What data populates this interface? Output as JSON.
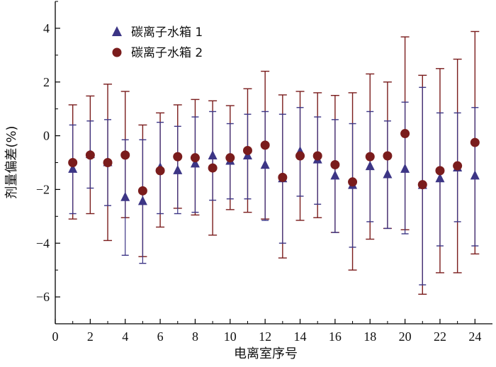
{
  "chart_data": {
    "type": "scatter",
    "xlabel": "电离室序号",
    "ylabel": "剂量偏差(%)",
    "xlim": [
      0,
      25
    ],
    "ylim": [
      -7,
      5
    ],
    "xticks": [
      0,
      2,
      4,
      6,
      8,
      10,
      12,
      14,
      16,
      18,
      20,
      22,
      24
    ],
    "yticks": [
      -6,
      -4,
      -2,
      0,
      2,
      4
    ],
    "ytick_labels": [
      "−6",
      "−4",
      "−2",
      "0",
      "2",
      "4"
    ],
    "legend_position": "top-left",
    "colors": {
      "series1": "#3c3585",
      "series2": "#7a1c1c"
    },
    "series": [
      {
        "name": "碳离子水箱 1",
        "marker": "triangle",
        "x": [
          1,
          2,
          3,
          4,
          5,
          6,
          7,
          8,
          9,
          10,
          11,
          12,
          13,
          14,
          15,
          16,
          17,
          18,
          19,
          20,
          21,
          22,
          23,
          24
        ],
        "y": [
          -1.25,
          -0.7,
          -1.0,
          -2.3,
          -2.45,
          -1.2,
          -1.3,
          -1.05,
          -0.75,
          -0.95,
          -0.75,
          -1.1,
          -1.6,
          -0.6,
          -0.9,
          -1.5,
          -1.85,
          -1.15,
          -1.45,
          -1.25,
          -1.85,
          -1.6,
          -1.2,
          -1.5
        ],
        "err_low": [
          -2.9,
          -1.95,
          -2.6,
          -4.45,
          -4.75,
          -2.9,
          -2.9,
          -2.85,
          -2.4,
          -2.35,
          -2.35,
          -3.15,
          -4.0,
          -2.25,
          -2.55,
          -3.6,
          -4.15,
          -3.2,
          -3.45,
          -3.65,
          -5.55,
          -4.1,
          -3.2,
          -4.1
        ],
        "err_high": [
          0.4,
          0.55,
          0.6,
          -0.15,
          -0.15,
          0.5,
          0.35,
          0.7,
          0.9,
          0.45,
          0.8,
          0.9,
          0.8,
          1.05,
          0.7,
          0.6,
          0.45,
          0.9,
          0.55,
          1.25,
          1.8,
          0.85,
          0.85,
          1.05
        ]
      },
      {
        "name": "碳离子水箱 2",
        "marker": "circle",
        "x": [
          1,
          2,
          3,
          4,
          5,
          6,
          7,
          8,
          9,
          10,
          11,
          12,
          13,
          14,
          15,
          16,
          17,
          18,
          19,
          20,
          21,
          22,
          23,
          24
        ],
        "y": [
          -1.0,
          -0.72,
          -1.0,
          -0.72,
          -2.05,
          -1.3,
          -0.78,
          -0.82,
          -1.2,
          -0.82,
          -0.55,
          -0.35,
          -1.55,
          -0.75,
          -0.75,
          -1.08,
          -1.72,
          -0.78,
          -0.75,
          0.08,
          -1.82,
          -1.3,
          -1.12,
          -0.25
        ],
        "err_low": [
          -3.1,
          -2.9,
          -3.9,
          -3.05,
          -4.5,
          -3.4,
          -2.7,
          -2.95,
          -3.7,
          -2.75,
          -2.85,
          -3.1,
          -4.55,
          -3.15,
          -3.05,
          -3.6,
          -5.0,
          -3.85,
          -3.45,
          -3.5,
          -5.9,
          -5.1,
          -5.1,
          -4.4
        ],
        "err_high": [
          1.15,
          1.48,
          1.92,
          1.65,
          0.4,
          0.85,
          1.15,
          1.35,
          1.3,
          1.12,
          1.75,
          2.4,
          1.52,
          1.65,
          1.6,
          1.5,
          1.6,
          2.3,
          2.0,
          3.68,
          2.25,
          2.5,
          2.85,
          3.88
        ]
      }
    ]
  }
}
